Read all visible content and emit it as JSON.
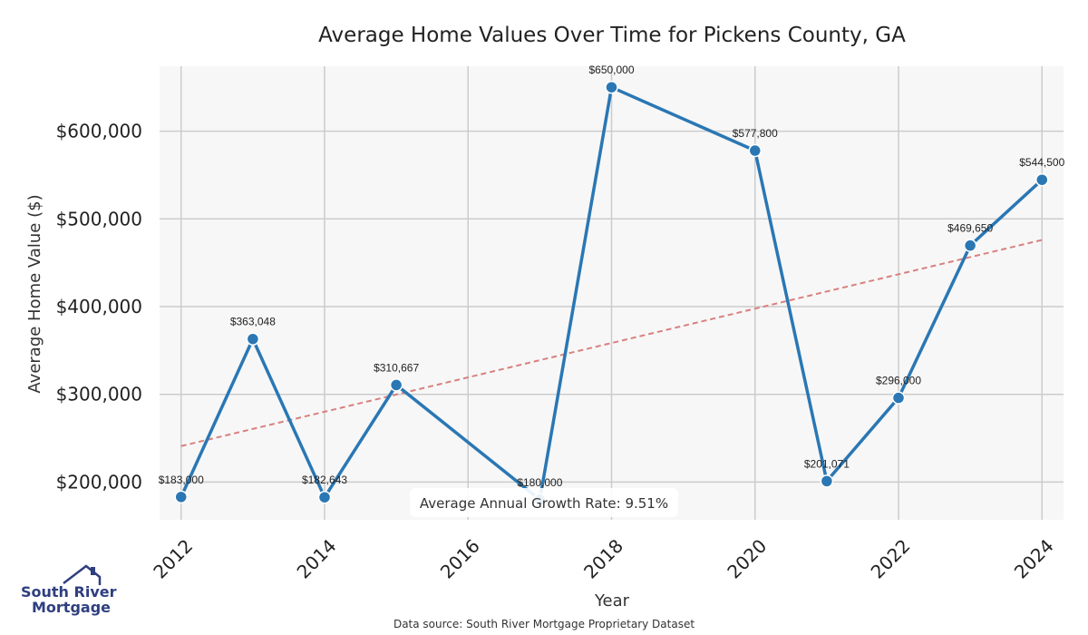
{
  "chart_data": {
    "type": "line",
    "title": "Average Home Values Over Time for Pickens County, GA",
    "xlabel": "Year",
    "ylabel": "Average Home Value ($)",
    "x": [
      2012,
      2013,
      2014,
      2015,
      2017,
      2018,
      2020,
      2021,
      2022,
      2023,
      2024
    ],
    "series": [
      {
        "values": [
          183000,
          363048,
          182643,
          310667,
          180000,
          650000,
          577800,
          201071,
          296000,
          469650,
          544500
        ],
        "labels": [
          "$183,000",
          "$363,048",
          "$182,643",
          "$310,667",
          "$180,000",
          "$650,000",
          "$577,800",
          "$201,071",
          "$296,000",
          "$469,650",
          "$544,500"
        ],
        "color": "#2a77b4"
      }
    ],
    "trendline": {
      "start": [
        2012,
        241000
      ],
      "end": [
        2024,
        476000
      ],
      "color": "#d98080",
      "style": "dashed"
    },
    "xlim": [
      2011.7,
      2024.3
    ],
    "ylim": [
      157000,
      674000
    ],
    "xticks": [
      2012,
      2014,
      2016,
      2018,
      2020,
      2022,
      2024
    ],
    "xtick_labels": [
      "2012",
      "2014",
      "2016",
      "2018",
      "2020",
      "2022",
      "2024"
    ],
    "yticks": [
      200000,
      300000,
      400000,
      500000,
      600000
    ],
    "ytick_labels": [
      "$200,000",
      "$300,000",
      "$400,000",
      "$500,000",
      "$600,000"
    ],
    "grid": true,
    "background": "#f7f7f7",
    "annotation": "Average Annual Growth Rate: 9.51%"
  },
  "footer": {
    "source": "Data source: South River Mortgage Proprietary Dataset"
  },
  "logo": {
    "line1": "South River",
    "line2": "Mortgage",
    "color": "#2f3f7f"
  }
}
